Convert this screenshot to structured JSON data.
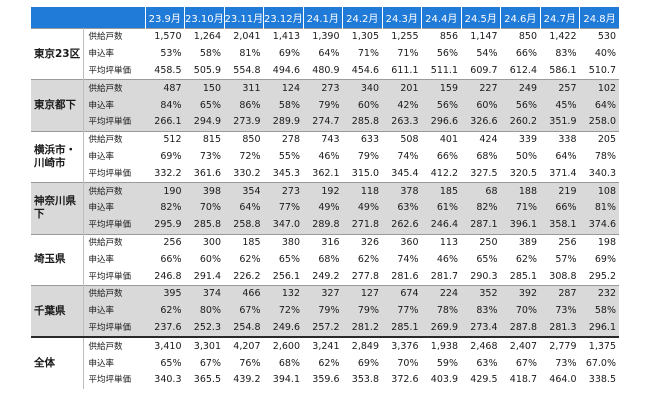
{
  "months": [
    "23.9月",
    "23.10月",
    "23.11月",
    "23.12月",
    "24.1月",
    "24.2月",
    "24.3月",
    "24.4月",
    "24.5月",
    "24.6月",
    "24.7月",
    "24.8月"
  ],
  "metrics": [
    "供給戸数",
    "申込率",
    "平均坪単価"
  ],
  "regions": [
    {
      "name": "東京23区",
      "rows": [
        [
          "1,570",
          "1,264",
          "2,041",
          "1,413",
          "1,390",
          "1,305",
          "1,255",
          "856",
          "1,147",
          "850",
          "1,422",
          "530"
        ],
        [
          "53%",
          "58%",
          "81%",
          "69%",
          "64%",
          "71%",
          "71%",
          "56%",
          "54%",
          "66%",
          "83%",
          "40%"
        ],
        [
          "458.5",
          "505.9",
          "554.8",
          "494.6",
          "480.9",
          "454.6",
          "611.1",
          "511.1",
          "609.7",
          "612.4",
          "586.1",
          "510.7"
        ]
      ]
    },
    {
      "name": "東京都下",
      "rows": [
        [
          "487",
          "150",
          "311",
          "124",
          "273",
          "340",
          "201",
          "159",
          "227",
          "249",
          "257",
          "102"
        ],
        [
          "84%",
          "65%",
          "86%",
          "58%",
          "79%",
          "60%",
          "42%",
          "56%",
          "60%",
          "56%",
          "45%",
          "64%"
        ],
        [
          "266.1",
          "294.9",
          "273.9",
          "289.9",
          "274.7",
          "285.8",
          "263.3",
          "296.6",
          "326.6",
          "260.2",
          "351.9",
          "258.0"
        ]
      ]
    },
    {
      "name": "横浜市・川崎市",
      "rows": [
        [
          "512",
          "815",
          "850",
          "278",
          "743",
          "633",
          "508",
          "401",
          "424",
          "339",
          "338",
          "205"
        ],
        [
          "69%",
          "73%",
          "72%",
          "55%",
          "46%",
          "79%",
          "74%",
          "66%",
          "68%",
          "50%",
          "64%",
          "78%"
        ],
        [
          "332.2",
          "361.6",
          "330.2",
          "345.3",
          "362.1",
          "315.0",
          "345.4",
          "412.2",
          "327.5",
          "320.5",
          "371.4",
          "340.3"
        ]
      ]
    },
    {
      "name": "神奈川県下",
      "rows": [
        [
          "190",
          "398",
          "354",
          "273",
          "192",
          "118",
          "378",
          "185",
          "68",
          "188",
          "219",
          "108"
        ],
        [
          "82%",
          "70%",
          "64%",
          "77%",
          "49%",
          "49%",
          "63%",
          "61%",
          "82%",
          "71%",
          "66%",
          "81%"
        ],
        [
          "295.9",
          "285.8",
          "258.8",
          "347.0",
          "289.8",
          "271.8",
          "262.6",
          "246.4",
          "287.1",
          "396.1",
          "358.1",
          "374.6"
        ]
      ]
    },
    {
      "name": "埼玉県",
      "rows": [
        [
          "256",
          "300",
          "185",
          "380",
          "316",
          "326",
          "360",
          "113",
          "250",
          "389",
          "256",
          "198"
        ],
        [
          "66%",
          "60%",
          "62%",
          "65%",
          "68%",
          "62%",
          "74%",
          "46%",
          "65%",
          "62%",
          "57%",
          "69%"
        ],
        [
          "246.8",
          "291.4",
          "226.2",
          "256.1",
          "249.2",
          "277.8",
          "281.6",
          "281.7",
          "290.3",
          "285.1",
          "308.8",
          "295.2"
        ]
      ]
    },
    {
      "name": "千葉県",
      "rows": [
        [
          "395",
          "374",
          "466",
          "132",
          "327",
          "127",
          "674",
          "224",
          "352",
          "392",
          "287",
          "232"
        ],
        [
          "62%",
          "80%",
          "67%",
          "72%",
          "79%",
          "79%",
          "77%",
          "78%",
          "83%",
          "70%",
          "73%",
          "58%"
        ],
        [
          "237.6",
          "252.3",
          "254.8",
          "249.6",
          "257.2",
          "281.2",
          "285.1",
          "269.9",
          "273.4",
          "287.8",
          "281.3",
          "296.1"
        ]
      ]
    },
    {
      "name": "全体",
      "rows": [
        [
          "3,410",
          "3,301",
          "4,207",
          "2,600",
          "3,241",
          "2,849",
          "3,376",
          "1,938",
          "2,468",
          "2,407",
          "2,779",
          "1,375"
        ],
        [
          "65%",
          "67%",
          "76%",
          "68%",
          "62%",
          "69%",
          "70%",
          "59%",
          "63%",
          "67%",
          "73%",
          "67.0%"
        ],
        [
          "340.3",
          "365.5",
          "439.2",
          "394.1",
          "359.6",
          "353.8",
          "372.6",
          "403.9",
          "429.5",
          "418.7",
          "464.0",
          "338.5"
        ]
      ]
    }
  ]
}
